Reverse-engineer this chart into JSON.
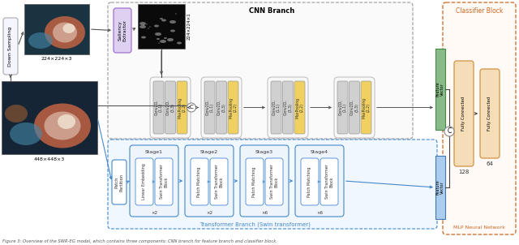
{
  "title": "CNN Branch",
  "transformer_branch_label": "Transformer Branch (Swin transformer)",
  "mlp_label": "MLP Neural Network",
  "classifier_label": "Classifier Block",
  "figure_caption": "Figure 3: Overview of the SWR-EG model, which contains three components: CNN branch for feature branch and classifier block.",
  "bg_color": "#ffffff",
  "img_size_1": "224×224×3",
  "img_size_2": "448×448×3",
  "saliency_size": "224×224×1",
  "cnn_block_gray": "#d0d0d0",
  "cnn_block_yellow": "#f0d060",
  "stage_fill": "#eef4fb",
  "stage_border": "#4488cc",
  "transformer_fill": "#eef4fb",
  "saliency_fill": "#ddd0f0",
  "saliency_border": "#9966cc",
  "green_bar": "#88bb88",
  "blue_bar": "#aaccee",
  "mlp_fc_fill": "#f5ddb8",
  "mlp_fc_border": "#cc8833",
  "mlp_outer_border": "#cc6622",
  "cnn_outer_border": "#999999",
  "trans_outer_border": "#4488cc"
}
